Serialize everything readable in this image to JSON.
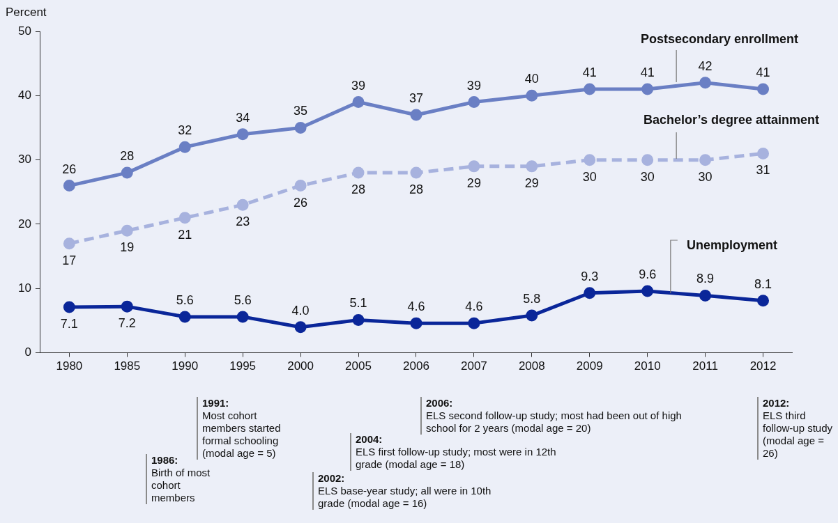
{
  "chart_data": {
    "type": "line",
    "ylabel": "Percent",
    "categories": [
      "1980",
      "1985",
      "1990",
      "1995",
      "2000",
      "2005",
      "2006",
      "2007",
      "2008",
      "2009",
      "2010",
      "2011",
      "2012"
    ],
    "ylim": [
      0,
      50
    ],
    "yticks": [
      0,
      10,
      20,
      30,
      40,
      50
    ],
    "grid": false,
    "legend": false,
    "marker": "circle",
    "series": [
      {
        "name": "Postsecondary enrollment",
        "color": "#6a7fc4",
        "line_style": "solid",
        "values": [
          26,
          28,
          32,
          34,
          35,
          39,
          37,
          39,
          40,
          41,
          41,
          42,
          41
        ],
        "value_labels": [
          "26",
          "28",
          "32",
          "34",
          "35",
          "39",
          "37",
          "39",
          "40",
          "41",
          "41",
          "42",
          "41"
        ]
      },
      {
        "name": "Bachelor’s degree attainment",
        "color": "#a7b2de",
        "line_style": "dashed",
        "values": [
          17,
          19,
          21,
          23,
          26,
          28,
          28,
          29,
          29,
          30,
          30,
          30,
          31
        ],
        "value_labels": [
          "17",
          "19",
          "21",
          "23",
          "26",
          "28",
          "28",
          "29",
          "29",
          "30",
          "30",
          "30",
          "31"
        ]
      },
      {
        "name": "Unemployment",
        "color": "#0a2699",
        "line_style": "solid",
        "values": [
          7.1,
          7.2,
          5.6,
          5.6,
          4.0,
          5.1,
          4.6,
          4.6,
          5.8,
          9.3,
          9.6,
          8.9,
          8.1
        ],
        "value_labels": [
          "7.1",
          "7.2",
          "5.6",
          "5.6",
          "4.0",
          "5.1",
          "4.6",
          "4.6",
          "5.8",
          "9.3",
          "9.6",
          "8.9",
          "8.1"
        ]
      }
    ],
    "annotations": [
      "1986: Birth of most cohort members",
      "1991: Most cohort members started formal schooling (modal age = 5)",
      "2002: ELS base-year study; all were in 10th grade (modal age = 16)",
      "2004: ELS first follow-up study; most were in 12th grade (modal age = 18)",
      "2006: ELS second follow-up study; most had been out of high school for 2 years (modal age = 20)",
      "2012: ELS third follow-up study (modal age = 26)"
    ]
  }
}
